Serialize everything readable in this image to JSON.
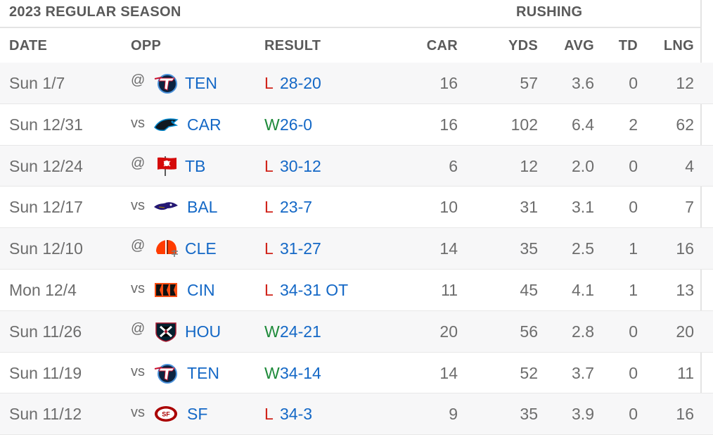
{
  "season": {
    "title": "2023 REGULAR SEASON",
    "group": "RUSHING"
  },
  "headers": {
    "date": "DATE",
    "opp": "OPP",
    "result": "RESULT",
    "car": "CAR",
    "yds": "YDS",
    "avg": "AVG",
    "td": "TD",
    "lng": "LNG"
  },
  "colors": {
    "link": "#1468c6",
    "loss": "#d0241b",
    "win": "#1e8a3a"
  },
  "games": [
    {
      "date": "Sun 1/7",
      "prefix": "@",
      "team": "TEN",
      "logo": "titans-logo",
      "wl": "L",
      "score": "28-20",
      "car": "16",
      "yds": "57",
      "avg": "3.6",
      "td": "0",
      "lng": "12"
    },
    {
      "date": "Sun 12/31",
      "prefix": "vs",
      "team": "CAR",
      "logo": "panthers-logo",
      "wl": "W",
      "score": "26-0",
      "car": "16",
      "yds": "102",
      "avg": "6.4",
      "td": "2",
      "lng": "62"
    },
    {
      "date": "Sun 12/24",
      "prefix": "@",
      "team": "TB",
      "logo": "buccaneers-logo",
      "wl": "L",
      "score": "30-12",
      "car": "6",
      "yds": "12",
      "avg": "2.0",
      "td": "0",
      "lng": "4"
    },
    {
      "date": "Sun 12/17",
      "prefix": "vs",
      "team": "BAL",
      "logo": "ravens-logo",
      "wl": "L",
      "score": "23-7",
      "car": "10",
      "yds": "31",
      "avg": "3.1",
      "td": "0",
      "lng": "7"
    },
    {
      "date": "Sun 12/10",
      "prefix": "@",
      "team": "CLE",
      "logo": "browns-logo",
      "wl": "L",
      "score": "31-27",
      "car": "14",
      "yds": "35",
      "avg": "2.5",
      "td": "1",
      "lng": "16"
    },
    {
      "date": "Mon 12/4",
      "prefix": "vs",
      "team": "CIN",
      "logo": "bengals-logo",
      "wl": "L",
      "score": "34-31 OT",
      "car": "11",
      "yds": "45",
      "avg": "4.1",
      "td": "1",
      "lng": "13"
    },
    {
      "date": "Sun 11/26",
      "prefix": "@",
      "team": "HOU",
      "logo": "texans-logo",
      "wl": "W",
      "score": "24-21",
      "car": "20",
      "yds": "56",
      "avg": "2.8",
      "td": "0",
      "lng": "20"
    },
    {
      "date": "Sun 11/19",
      "prefix": "vs",
      "team": "TEN",
      "logo": "titans-logo",
      "wl": "W",
      "score": "34-14",
      "car": "14",
      "yds": "52",
      "avg": "3.7",
      "td": "0",
      "lng": "11"
    },
    {
      "date": "Sun 11/12",
      "prefix": "vs",
      "team": "SF",
      "logo": "49ers-logo",
      "wl": "L",
      "score": "34-3",
      "car": "9",
      "yds": "35",
      "avg": "3.9",
      "td": "0",
      "lng": "16"
    }
  ]
}
